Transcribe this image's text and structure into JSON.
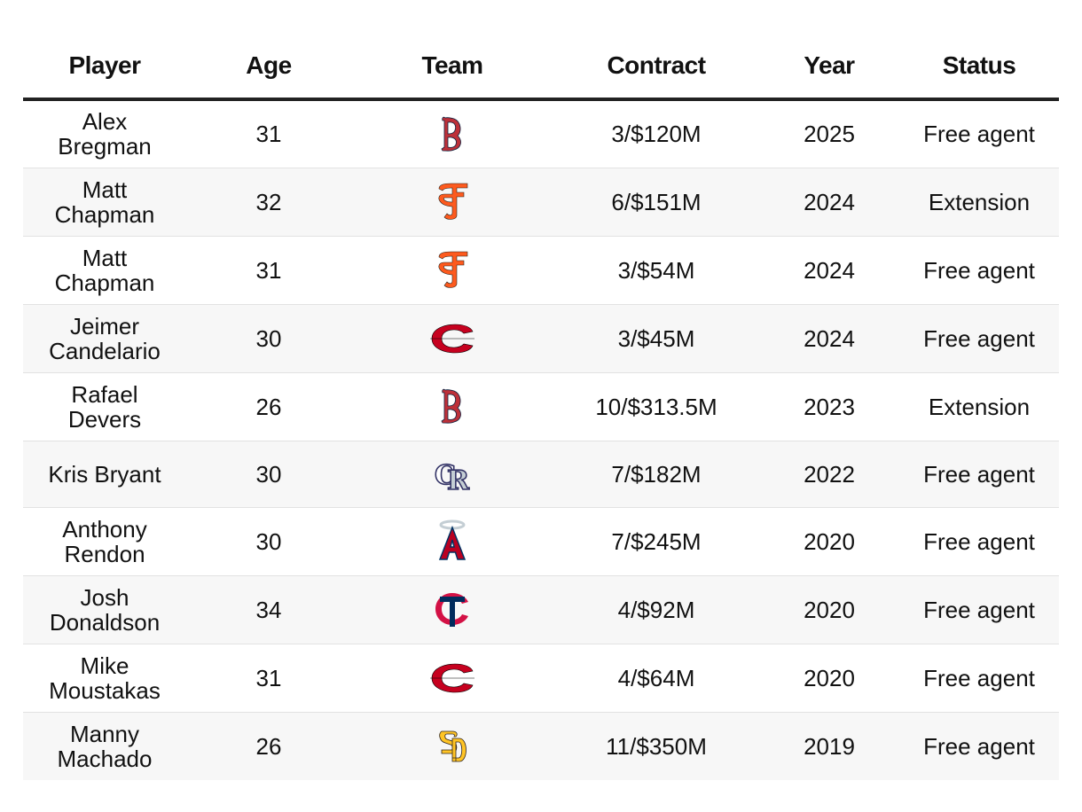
{
  "table": {
    "headers": {
      "player": "Player",
      "age": "Age",
      "team": "Team",
      "contract": "Contract",
      "year": "Year",
      "status": "Status"
    },
    "rows": [
      {
        "player": "Alex Bregman",
        "age": "31",
        "team_logo": "red-sox-logo",
        "contract": "3/$120M",
        "year": "2025",
        "status": "Free agent"
      },
      {
        "player": "Matt Chapman",
        "age": "32",
        "team_logo": "giants-logo",
        "contract": "6/$151M",
        "year": "2024",
        "status": "Extension"
      },
      {
        "player": "Matt Chapman",
        "age": "31",
        "team_logo": "giants-logo",
        "contract": "3/$54M",
        "year": "2024",
        "status": "Free agent"
      },
      {
        "player": "Jeimer Candelario",
        "age": "30",
        "team_logo": "reds-logo",
        "contract": "3/$45M",
        "year": "2024",
        "status": "Free agent"
      },
      {
        "player": "Rafael Devers",
        "age": "26",
        "team_logo": "red-sox-logo",
        "contract": "10/$313.5M",
        "year": "2023",
        "status": "Extension"
      },
      {
        "player": "Kris Bryant",
        "age": "30",
        "team_logo": "rockies-logo",
        "contract": "7/$182M",
        "year": "2022",
        "status": "Free agent"
      },
      {
        "player": "Anthony Rendon",
        "age": "30",
        "team_logo": "angels-logo",
        "contract": "7/$245M",
        "year": "2020",
        "status": "Free agent"
      },
      {
        "player": "Josh Donaldson",
        "age": "34",
        "team_logo": "twins-logo",
        "contract": "4/$92M",
        "year": "2020",
        "status": "Free agent"
      },
      {
        "player": "Mike Moustakas",
        "age": "31",
        "team_logo": "reds-logo",
        "contract": "4/$64M",
        "year": "2020",
        "status": "Free agent"
      },
      {
        "player": "Manny Machado",
        "age": "26",
        "team_logo": "padres-logo",
        "contract": "11/$350M",
        "year": "2019",
        "status": "Free agent"
      }
    ]
  },
  "colors": {
    "header_rule": "#222222",
    "stripe": "#f7f7f7",
    "red_sox": "#BD3039",
    "giants": "#FD5A1E",
    "reds": "#C6011F",
    "rockies": "#333366",
    "angels": "#BA0021",
    "twins": "#002B5C",
    "padres": "#FFC425"
  }
}
